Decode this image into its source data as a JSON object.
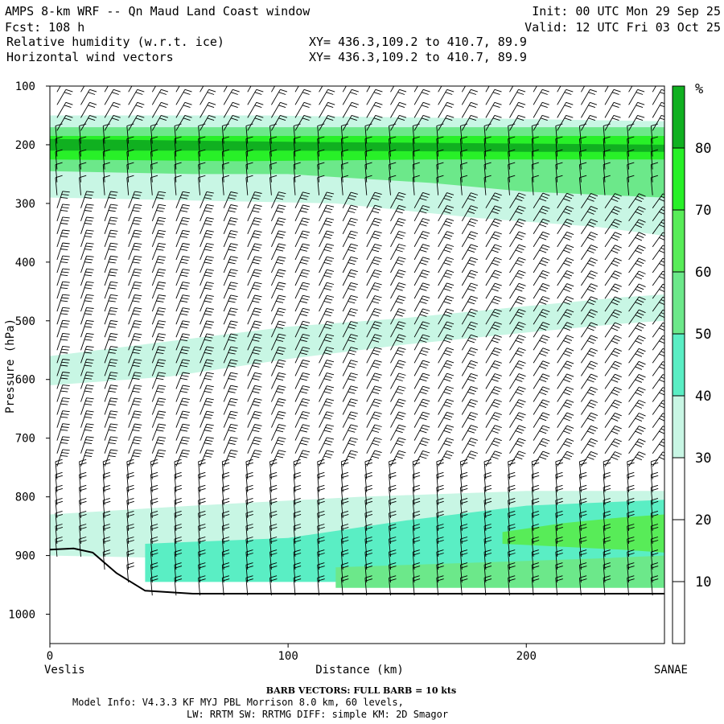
{
  "header": {
    "title": "AMPS 8-km WRF -- Qn Maud Land Coast window",
    "fcst": "Fcst: 108 h",
    "field1": "Relative humidity (w.r.t. ice)",
    "field2": "Horizontal wind vectors",
    "xy1": "XY= 436.3,109.2 to 410.7, 89.9",
    "xy2": "XY= 436.3,109.2 to 410.7, 89.9",
    "init": "Init: 00 UTC Mon 29 Sep 25",
    "valid": "Valid: 12 UTC Fri 03 Oct 25"
  },
  "footer": {
    "left_station": "Veslis",
    "right_station": "SANAE",
    "barb_note": "BARB VECTORS:  FULL BARB = 10 kts",
    "model_info": "Model Info: V4.3.3   KF      MYJ PBL  Morrison          8.0 km,  60 levels,",
    "model_info2": "LW: RRTM SW: RRTMG   DIFF: simple KM: 2D Smagor"
  },
  "colorbar": {
    "unit": "%",
    "ticks": [
      "10",
      "20",
      "30",
      "40",
      "50",
      "60",
      "70",
      "80"
    ],
    "levels": [
      {
        "from": 0,
        "to": 30,
        "color": "#ffffff"
      },
      {
        "from": 30,
        "to": 40,
        "color": "#c8f6e4"
      },
      {
        "from": 40,
        "to": 50,
        "color": "#5aeec4"
      },
      {
        "from": 50,
        "to": 60,
        "color": "#6ce88a"
      },
      {
        "from": 60,
        "to": 70,
        "color": "#58ec58"
      },
      {
        "from": 70,
        "to": 80,
        "color": "#28f028"
      },
      {
        "from": 80,
        "to": 90,
        "color": "#10b020"
      }
    ]
  },
  "chart_data": {
    "type": "heatmap",
    "title": "Relative humidity (w.r.t. ice) / Horizontal wind vectors",
    "xlabel": "Distance (km)",
    "ylabel": "Pressure (hPa)",
    "xlim": [
      0,
      258
    ],
    "ylim": [
      1050,
      100
    ],
    "x_ticks": [
      0,
      100,
      200
    ],
    "y_ticks": [
      100,
      200,
      300,
      400,
      500,
      600,
      700,
      800,
      900,
      1000
    ],
    "bands": [
      {
        "name": "upper",
        "color": "#c8f6e4",
        "top": [
          [
            0,
            150
          ],
          [
            90,
            150
          ],
          [
            180,
            155
          ],
          [
            258,
            160
          ]
        ],
        "bottom": [
          [
            0,
            290
          ],
          [
            60,
            295
          ],
          [
            120,
            300
          ],
          [
            180,
            325
          ],
          [
            230,
            340
          ],
          [
            258,
            355
          ]
        ]
      },
      {
        "name": "upper",
        "color": "#6ce88a",
        "top": [
          [
            0,
            170
          ],
          [
            258,
            170
          ]
        ],
        "bottom": [
          [
            0,
            245
          ],
          [
            60,
            250
          ],
          [
            100,
            250
          ],
          [
            160,
            265
          ],
          [
            200,
            280
          ],
          [
            258,
            290
          ]
        ]
      },
      {
        "name": "upper",
        "color": "#28f028",
        "top": [
          [
            0,
            185
          ],
          [
            258,
            185
          ]
        ],
        "bottom": [
          [
            0,
            225
          ],
          [
            80,
            228
          ],
          [
            160,
            225
          ],
          [
            258,
            225
          ]
        ]
      },
      {
        "name": "upper",
        "color": "#10b020",
        "top": [
          [
            0,
            190
          ],
          [
            100,
            195
          ],
          [
            200,
            198
          ],
          [
            258,
            200
          ]
        ],
        "bottom": [
          [
            0,
            210
          ],
          [
            100,
            210
          ],
          [
            200,
            212
          ],
          [
            258,
            212
          ]
        ]
      },
      {
        "name": "mid",
        "color": "#c8f6e4",
        "top": [
          [
            0,
            560
          ],
          [
            50,
            535
          ],
          [
            100,
            510
          ],
          [
            150,
            495
          ],
          [
            200,
            475
          ],
          [
            240,
            460
          ],
          [
            258,
            455
          ]
        ],
        "bottom": [
          [
            0,
            610
          ],
          [
            50,
            595
          ],
          [
            100,
            565
          ],
          [
            150,
            540
          ],
          [
            200,
            520
          ],
          [
            240,
            505
          ],
          [
            258,
            500
          ]
        ]
      },
      {
        "name": "low",
        "color": "#c8f6e4",
        "top": [
          [
            0,
            830
          ],
          [
            60,
            815
          ],
          [
            130,
            800
          ],
          [
            200,
            790
          ],
          [
            258,
            790
          ]
        ],
        "bottom": [
          [
            0,
            900
          ],
          [
            60,
            905
          ],
          [
            130,
            910
          ],
          [
            200,
            920
          ],
          [
            258,
            930
          ]
        ]
      },
      {
        "name": "low",
        "color": "#5aeec4",
        "top": [
          [
            40,
            880
          ],
          [
            100,
            870
          ],
          [
            150,
            840
          ],
          [
            200,
            815
          ],
          [
            258,
            805
          ]
        ],
        "bottom": [
          [
            40,
            945
          ],
          [
            100,
            945
          ],
          [
            150,
            945
          ],
          [
            200,
            945
          ],
          [
            258,
            945
          ]
        ]
      },
      {
        "name": "low",
        "color": "#58ec58",
        "top": [
          [
            190,
            860
          ],
          [
            215,
            845
          ],
          [
            240,
            835
          ],
          [
            258,
            830
          ]
        ],
        "bottom": [
          [
            190,
            880
          ],
          [
            215,
            885
          ],
          [
            240,
            890
          ],
          [
            258,
            895
          ]
        ]
      },
      {
        "name": "low",
        "color": "#6ce88a",
        "top": [
          [
            120,
            920
          ],
          [
            180,
            912
          ],
          [
            230,
            905
          ],
          [
            258,
            900
          ]
        ],
        "bottom": [
          [
            120,
            955
          ],
          [
            180,
            955
          ],
          [
            230,
            955
          ],
          [
            258,
            955
          ]
        ]
      }
    ],
    "terrain": [
      [
        0,
        890
      ],
      [
        10,
        888
      ],
      [
        18,
        895
      ],
      [
        28,
        930
      ],
      [
        40,
        960
      ],
      [
        60,
        965
      ],
      [
        100,
        965
      ],
      [
        258,
        965
      ]
    ],
    "barbs": {
      "x_columns": [
        3,
        13,
        23,
        33,
        43,
        53,
        63,
        73,
        83,
        93,
        103,
        113,
        123,
        133,
        143,
        153,
        163,
        173,
        183,
        193,
        203,
        213,
        223,
        233,
        243,
        253
      ],
      "note": "wind barb columns, full barb = 10 kts"
    }
  }
}
